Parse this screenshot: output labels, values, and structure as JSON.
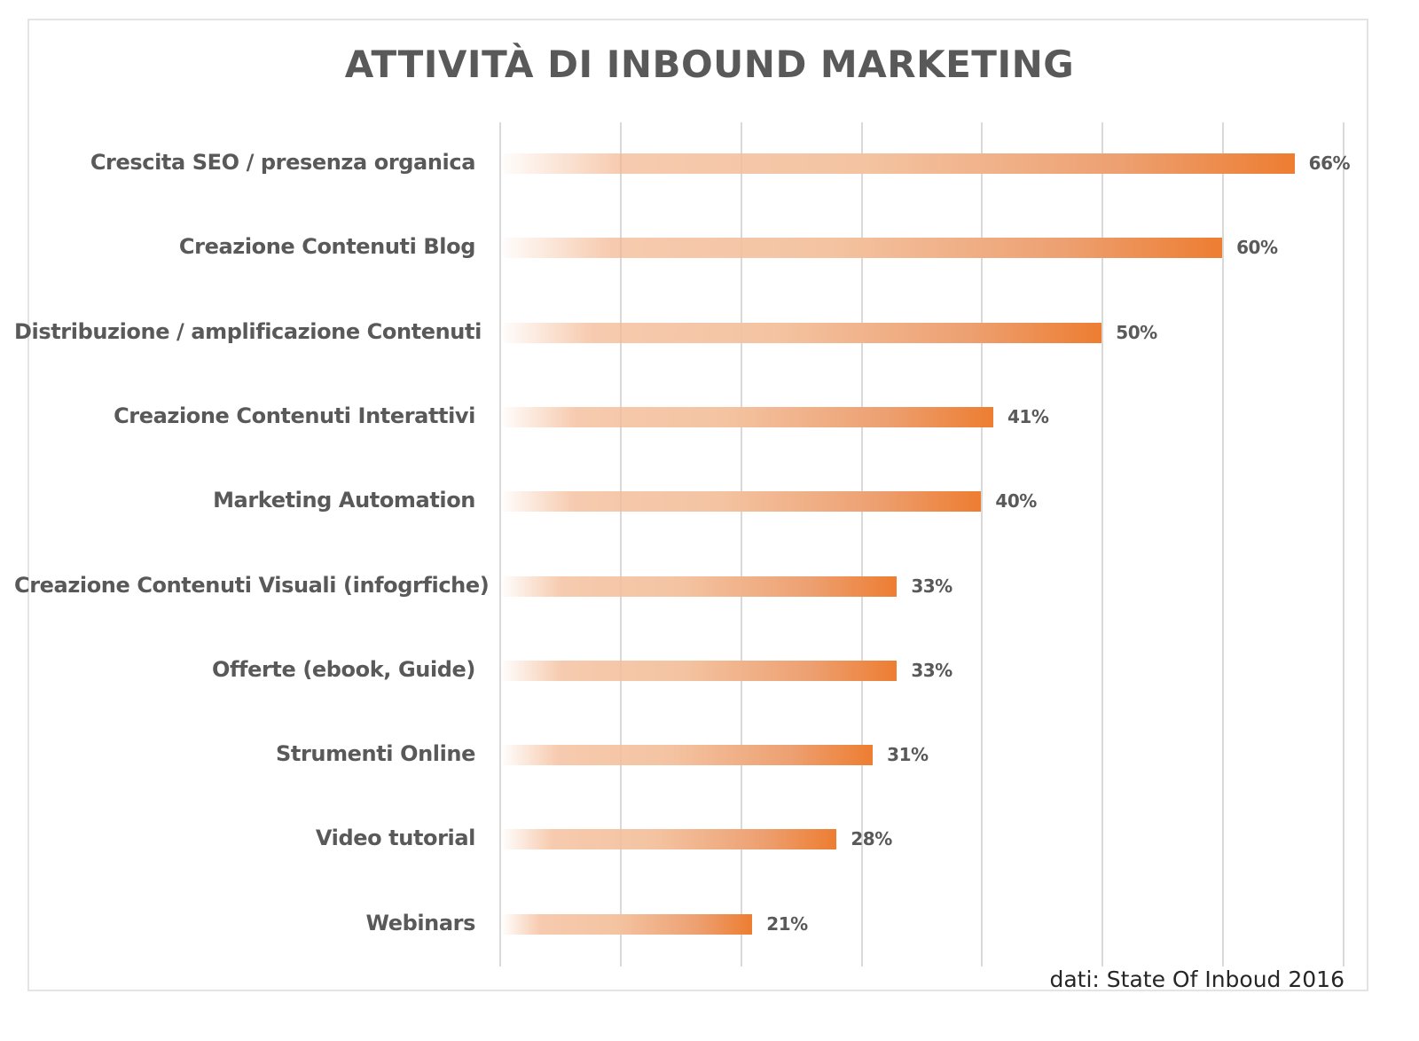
{
  "chart_data": {
    "type": "bar",
    "orientation": "horizontal",
    "title": "ATTIVITÀ DI INBOUND MARKETING",
    "categories": [
      "Crescita SEO / presenza organica",
      "Creazione Contenuti Blog",
      "Distribuzione / amplificazione Contenuti",
      "Creazione Contenuti Interattivi",
      "Marketing Automation",
      "Creazione Contenuti Visuali (infogrfiche)",
      "Offerte (ebook, Guide)",
      "Strumenti Online",
      "Video tutorial",
      "Webinars"
    ],
    "values": [
      66,
      60,
      50,
      41,
      40,
      33,
      33,
      31,
      28,
      21
    ],
    "value_labels": [
      "66%",
      "60%",
      "50%",
      "41%",
      "40%",
      "33%",
      "33%",
      "31%",
      "28%",
      "21%"
    ],
    "xlabel": "",
    "ylabel": "",
    "xlim": [
      0,
      70
    ],
    "grid": true,
    "gridline_step": 10,
    "legend": null,
    "bar_color": "#ed7d31",
    "annotation": "dati: State Of Inboud 2016"
  },
  "colors": {
    "bar_end": "#ed7d31",
    "text": "#595959",
    "grid": "#d9d9d9",
    "frame": "#e4e4e4"
  }
}
